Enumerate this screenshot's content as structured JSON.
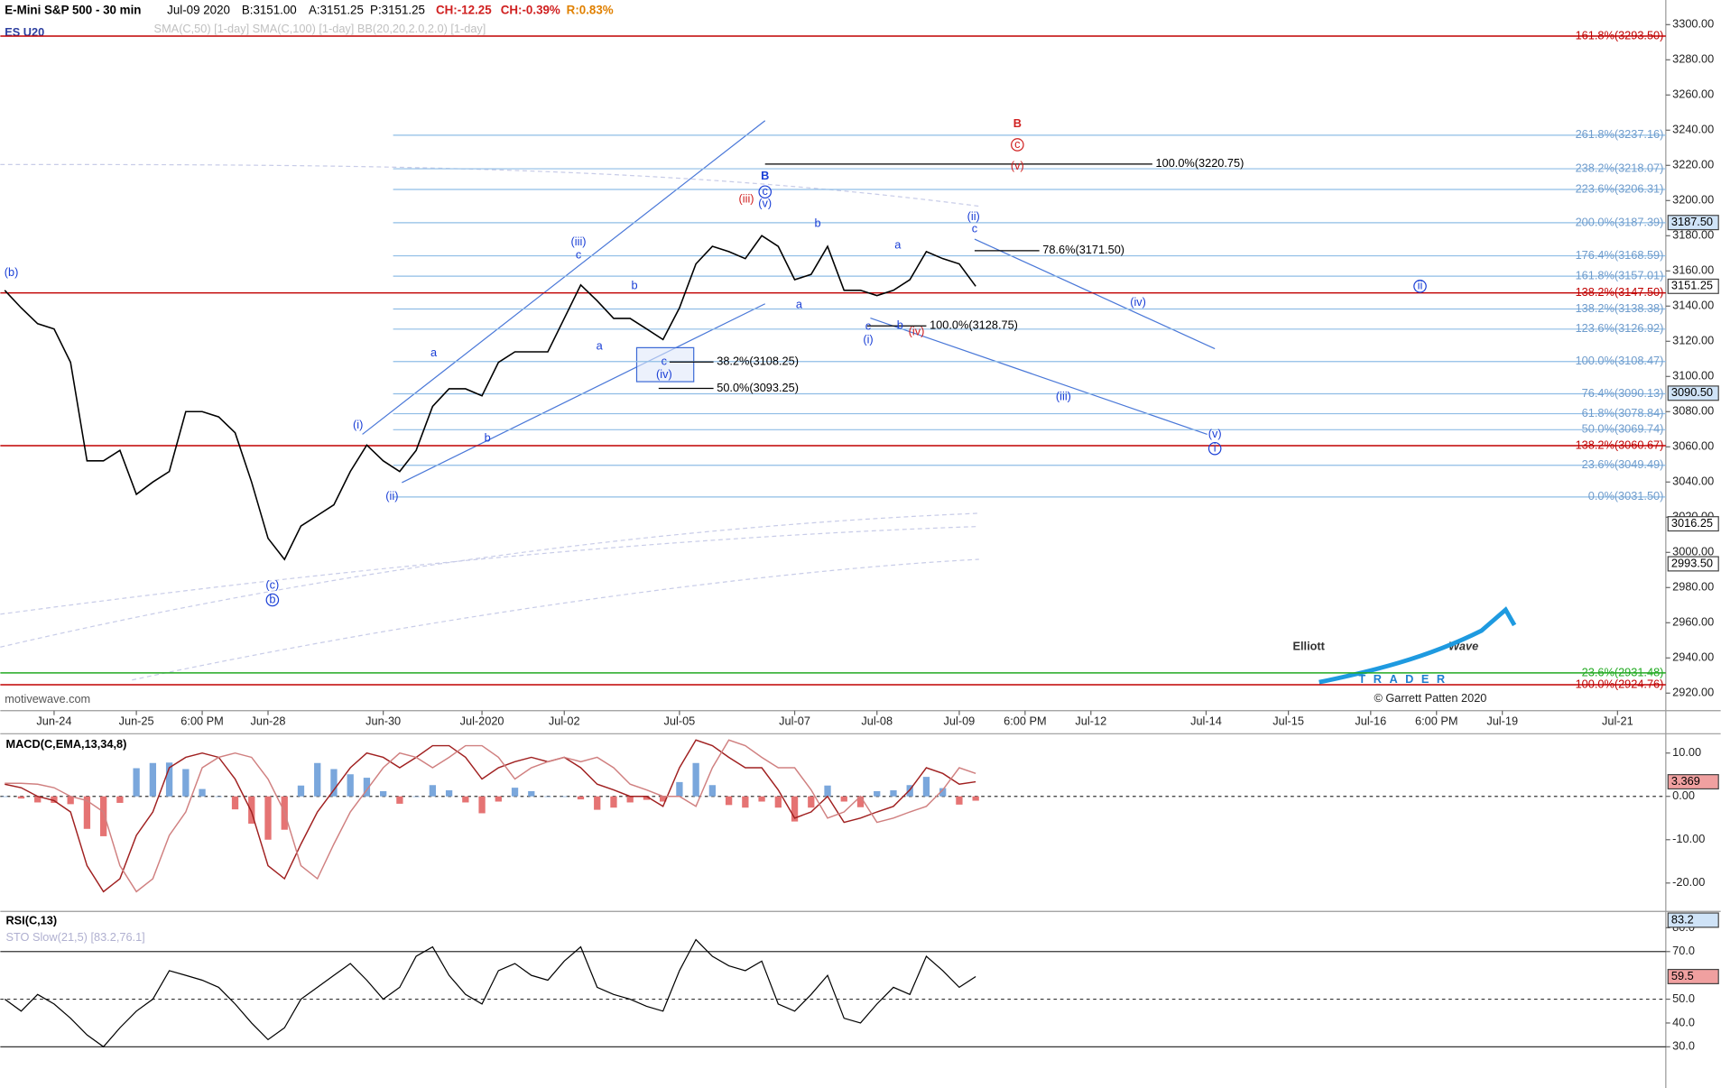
{
  "header": {
    "instrument": "E-Mini S&P 500 - 30 min",
    "date": "Jul-09 2020",
    "bid": "B:3151.00",
    "ask": "A:3151.25",
    "price": "P:3151.25",
    "change": "CH:-12.25",
    "change_pct": "CH:-0.39%",
    "range": "R:0.83%",
    "ticker": "ES U20",
    "indicators": "SMA(C,50) [1-day] SMA(C,100) [1-day] BB(20,20,2.0,2.0) [1-day]",
    "watermark": "motivewave.com"
  },
  "logo": {
    "word1": "Elliott",
    "word2": "Wave",
    "word3": "TRADER",
    "credit": "© Garrett Patten 2020"
  },
  "chart_data": [
    {
      "type": "line",
      "categories": [
        null,
        null,
        null,
        "Jun-24",
        null,
        null,
        null,
        null,
        "Jun-25",
        null,
        null,
        null,
        "6:00 PM",
        null,
        null,
        null,
        "Jun-28",
        null,
        null,
        null,
        null,
        null,
        null,
        "Jun-30",
        null,
        null,
        null,
        null,
        null,
        "Jul-2020",
        null,
        null,
        null,
        null,
        "Jul-02",
        null,
        null,
        null,
        null,
        null,
        null,
        "Jul-05",
        null,
        null,
        null,
        null,
        null,
        null,
        "Jul-07",
        null,
        null,
        null,
        null,
        "Jul-08",
        null,
        null,
        null,
        null,
        "Jul-09",
        null,
        null,
        null,
        "6:00 PM",
        null,
        null,
        null,
        "Jul-12",
        null,
        null,
        null,
        null,
        null,
        null,
        "Jul-14",
        null,
        null,
        null,
        null,
        "Jul-15",
        null,
        null,
        null,
        null,
        "Jul-16",
        null,
        null,
        null,
        "6:00 PM",
        null,
        null,
        null,
        "Jul-19",
        null,
        null,
        null,
        null,
        null,
        null,
        "Jul-21",
        null,
        null
      ],
      "values": [
        3149,
        3139,
        3130,
        3127,
        3108,
        3052,
        3052,
        3058,
        3033,
        3040,
        3046,
        3080,
        3080,
        3077,
        3068,
        3040,
        3008,
        2996,
        3015,
        3021,
        3027,
        3046,
        3061,
        3052,
        3046,
        3058,
        3083,
        3093,
        3093,
        3089,
        3108,
        3114,
        3114,
        3114,
        3133,
        3152,
        3143,
        3133,
        3133,
        3127,
        3121,
        3139,
        3164,
        3174,
        3171,
        3167,
        3180,
        3174,
        3155,
        3158,
        3174,
        3149,
        3149,
        3146,
        3149,
        3155,
        3171,
        3167,
        3164,
        3151.25,
        null,
        null,
        null,
        null,
        null,
        null,
        null,
        null,
        null,
        null,
        null,
        null,
        null,
        null,
        null,
        null,
        null,
        null,
        null,
        null,
        null,
        null,
        null,
        null,
        null,
        null,
        null,
        null,
        null,
        null,
        null,
        null,
        null,
        null,
        null,
        null,
        null,
        null,
        null,
        null,
        null
      ],
      "color": "#000000",
      "ylim": [
        2910,
        3314
      ],
      "yticks": [
        {
          "value": 2920,
          "label": "2920.00"
        },
        {
          "value": 2940,
          "label": "2940.00"
        },
        {
          "value": 2960,
          "label": "2960.00"
        },
        {
          "value": 2980,
          "label": "2980.00"
        },
        {
          "value": 3000,
          "label": "3000.00"
        },
        {
          "value": 3020,
          "label": "3020.00"
        },
        {
          "value": 3040,
          "label": "3040.00"
        },
        {
          "value": 3060,
          "label": "3060.00"
        },
        {
          "value": 3080,
          "label": "3080.00"
        },
        {
          "value": 3100,
          "label": "3100.00"
        },
        {
          "value": 3120,
          "label": "3120.00"
        },
        {
          "value": 3140,
          "label": "3140.00"
        },
        {
          "value": 3160,
          "label": "3160.00"
        },
        {
          "value": 3180,
          "label": "3180.00"
        },
        {
          "value": 3200,
          "label": "3200.00"
        },
        {
          "value": 3220,
          "label": "3220.00"
        },
        {
          "value": 3240,
          "label": "3240.00"
        },
        {
          "value": 3260,
          "label": "3260.00"
        },
        {
          "value": 3280,
          "label": "3280.00"
        },
        {
          "value": 3300,
          "label": "3300.00"
        }
      ],
      "levels": [
        {
          "label": "161.8%(3293.50)",
          "value": 3293.5,
          "color": "#c00000"
        },
        {
          "label": "261.8%(3237.16)",
          "value": 3237.16,
          "color": "#8fbde6"
        },
        {
          "label": "238.2%(3218.07)",
          "value": 3218.07,
          "color": "#8fbde6"
        },
        {
          "label": "223.6%(3206.31)",
          "value": 3206.31,
          "color": "#8fbde6"
        },
        {
          "label": "200.0%(3187.39)",
          "value": 3187.39,
          "color": "#8fbde6"
        },
        {
          "label": "176.4%(3168.59)",
          "value": 3168.59,
          "color": "#8fbde6"
        },
        {
          "label": "161.8%(3157.01)",
          "value": 3157.01,
          "color": "#8fbde6"
        },
        {
          "label": "138.2%(3147.50)",
          "value": 3147.5,
          "color": "#c00000"
        },
        {
          "label": "138.2%(3138.38)",
          "value": 3138.38,
          "color": "#8fbde6"
        },
        {
          "label": "123.6%(3126.92)",
          "value": 3126.92,
          "color": "#8fbde6"
        },
        {
          "label": "100.0%(3108.47)",
          "value": 3108.47,
          "color": "#8fbde6"
        },
        {
          "label": "76.4%(3090.13)",
          "value": 3090.13,
          "color": "#8fbde6"
        },
        {
          "label": "61.8%(3078.84)",
          "value": 3078.84,
          "color": "#8fbde6"
        },
        {
          "label": "50.0%(3069.74)",
          "value": 3069.74,
          "color": "#8fbde6"
        },
        {
          "label": "138.2%(3060.67)",
          "value": 3060.67,
          "color": "#c00000"
        },
        {
          "label": "23.6%(3049.49)",
          "value": 3049.49,
          "color": "#8fbde6"
        },
        {
          "label": "0.0%(3031.50)",
          "value": 3031.5,
          "color": "#8fbde6"
        },
        {
          "label": "23.6%(2931.48)",
          "value": 2931.48,
          "color": "#22aa22"
        },
        {
          "label": "100.0%(2924.76)",
          "value": 2924.76,
          "color": "#c00000"
        }
      ],
      "short_levels": [
        {
          "label": "100.0%(3220.75)",
          "value": 3220.75
        },
        {
          "label": "78.6%(3171.50)",
          "value": 3171.5
        },
        {
          "label": "100.0%(3128.75)",
          "value": 3128.75
        },
        {
          "label": "38.2%(3108.25)",
          "value": 3108.25
        },
        {
          "label": "50.0%(3093.25)",
          "value": 3093.25
        }
      ],
      "price_badges": [
        {
          "value": 3187.5,
          "label": "3187.50"
        },
        3151.25,
        {
          "value": 3090.5,
          "label": "3090.50"
        },
        3016.25,
        {
          "value": 2993.5,
          "label": "2993.50"
        }
      ],
      "wave_labels": [
        {
          "text": "(b)",
          "color": "#1a3fd6"
        },
        {
          "text": "(c)",
          "color": "#1a3fd6"
        },
        {
          "text": "b",
          "color": "#1a3fd6",
          "circled": true
        },
        {
          "text": "(i)",
          "color": "#1a3fd6"
        },
        {
          "text": "(ii)",
          "color": "#1a3fd6"
        },
        {
          "text": "a",
          "color": "#1a3fd6"
        },
        {
          "text": "b",
          "color": "#1a3fd6"
        },
        {
          "text": "(iii)",
          "color": "#1a3fd6"
        },
        {
          "text": "c",
          "color": "#1a3fd6"
        },
        {
          "text": "b",
          "color": "#1a3fd6"
        },
        {
          "text": "a",
          "color": "#1a3fd6"
        },
        {
          "text": "c",
          "color": "#1a3fd6"
        },
        {
          "text": "(iv)",
          "color": "#1a3fd6"
        },
        {
          "text": "(iii)",
          "color": "#d02020"
        },
        {
          "text": "(v)",
          "color": "#1a3fd6"
        },
        {
          "text": "c",
          "color": "#1a3fd6",
          "circled": true
        },
        {
          "text": "B",
          "color": "#1a3fd6",
          "bold": true
        },
        {
          "text": "b",
          "color": "#1a3fd6"
        },
        {
          "text": "a",
          "color": "#1a3fd6"
        },
        {
          "text": "a",
          "color": "#1a3fd6"
        },
        {
          "text": "c",
          "color": "#1a3fd6"
        },
        {
          "text": "(i)",
          "color": "#1a3fd6"
        },
        {
          "text": "b",
          "color": "#1a3fd6"
        },
        {
          "text": "(iv)",
          "color": "#d02020"
        },
        {
          "text": "(ii)",
          "color": "#1a3fd6"
        },
        {
          "text": "c",
          "color": "#1a3fd6"
        },
        {
          "text": "B",
          "color": "#d02020",
          "bold": true
        },
        {
          "text": "c",
          "color": "#d02020",
          "circled": true
        },
        {
          "text": "(v)",
          "color": "#d02020"
        },
        {
          "text": "(iv)",
          "color": "#1a3fd6"
        },
        {
          "text": "(iii)",
          "color": "#1a3fd6"
        },
        {
          "text": "(v)",
          "color": "#1a3fd6"
        },
        {
          "text": "i",
          "color": "#1a3fd6",
          "circled": true
        },
        {
          "text": "ii",
          "color": "#1a3fd6",
          "circled": true
        }
      ]
    },
    {
      "type": "macd",
      "title": "MACD(C,EMA,13,34,8)",
      "series": [
        {
          "color": "#a02020",
          "values": [
            2.8,
            2,
            0,
            -1,
            -3.6,
            -16,
            -22,
            -19,
            -9,
            -3.6,
            6.6,
            9,
            10,
            9,
            4,
            -3.6,
            -16,
            -19,
            -11,
            -3.6,
            1.5,
            6.6,
            10,
            9,
            6.6,
            9,
            11.7,
            11.7,
            9,
            4,
            6.6,
            8,
            9,
            8,
            9,
            6.6,
            2.8,
            1.5,
            0,
            0,
            -2.3,
            6.6,
            13,
            11.7,
            9,
            6.6,
            6.6,
            1.5,
            -5,
            -3.6,
            0,
            -6,
            -5,
            -3.6,
            -2.3,
            1.5,
            6.6,
            5.3,
            2.8,
            3.369
          ]
        },
        {
          "color": "#d08080",
          "values": [
            3,
            3,
            2.8,
            2,
            0,
            -1,
            -3.6,
            -16,
            -22,
            -19,
            -9,
            -3.6,
            6.6,
            9,
            10,
            9,
            4,
            -3.6,
            -16,
            -19,
            -11,
            -3.6,
            1.5,
            6.6,
            10,
            9,
            6.6,
            9,
            11.7,
            11.7,
            9,
            4,
            6.6,
            8,
            9,
            8,
            9,
            6.6,
            2.8,
            1.5,
            0,
            0,
            -2.3,
            6.6,
            13,
            11.7,
            9,
            6.6,
            6.6,
            1.5,
            -5,
            -3.6,
            0,
            -6,
            -5,
            -3.6,
            -2.3,
            1.5,
            6.6,
            5.3
          ]
        }
      ],
      "histogram": [
        0,
        -0.5,
        -1.4,
        -1.5,
        -1.8,
        -7.5,
        -9.2,
        -1.5,
        6.5,
        7.7,
        7.8,
        6.3,
        1.7,
        0,
        -3,
        -6.3,
        -10,
        -7.7,
        2.5,
        7.7,
        6.3,
        5.1,
        4.3,
        1.2,
        -1.7,
        0,
        2.6,
        1.4,
        -1.4,
        -3.9,
        -1.2,
        2,
        1.2,
        0,
        0,
        -0.7,
        -3.1,
        -2.6,
        -1.4,
        -0.8,
        -1.2,
        3.3,
        7.7,
        2.6,
        -2,
        -2.6,
        -1.2,
        -2.6,
        -5.8,
        -2.6,
        2.5,
        -1.2,
        -2.5,
        1.2,
        1.4,
        2.6,
        4.5,
        1.9,
        -1.9,
        -1
      ],
      "hist_colors": {
        "up": "#7aa7dc",
        "down": "#e57373"
      },
      "zero_line": true,
      "ylim": [
        -26.3,
        14.2
      ],
      "yticks": [
        {
          "value": 10,
          "label": "10.00"
        },
        {
          "value": 0,
          "label": "0.00"
        },
        {
          "value": -10,
          "label": "-10.00"
        },
        {
          "value": -20,
          "label": "-20.00"
        }
      ],
      "badges": [
        3.369
      ]
    },
    {
      "type": "line",
      "title": "RSI(C,13)",
      "subtitle": "STO Slow(21,5) [83.2,76.1]",
      "values": [
        50,
        45,
        52,
        48,
        42,
        35,
        30,
        38,
        45,
        50,
        62,
        60,
        58,
        55,
        48,
        40,
        33,
        38,
        50,
        55,
        60,
        65,
        58,
        50,
        55,
        68,
        72,
        60,
        52,
        48,
        62,
        65,
        60,
        58,
        66,
        72,
        55,
        52,
        50,
        47,
        45,
        62,
        75,
        68,
        64,
        62,
        66,
        48,
        45,
        52,
        60,
        42,
        40,
        48,
        55,
        52,
        68,
        62,
        55,
        59.5
      ],
      "color": "#000000",
      "ylim": [
        12.7,
        86.4
      ],
      "yticks": [
        {
          "value": 30,
          "label": "30.0"
        },
        {
          "value": 40,
          "label": "40.0"
        },
        {
          "value": 50,
          "label": "50.0"
        },
        {
          "value": 70,
          "label": "70.0"
        },
        {
          "value": 80,
          "label": "80.0"
        }
      ],
      "ref_lines": [
        {
          "value": 70,
          "dashed": false
        },
        {
          "value": 50,
          "dashed": true
        },
        {
          "value": 30,
          "dashed": false
        }
      ],
      "badges": [
        83.2,
        59.5
      ]
    }
  ]
}
